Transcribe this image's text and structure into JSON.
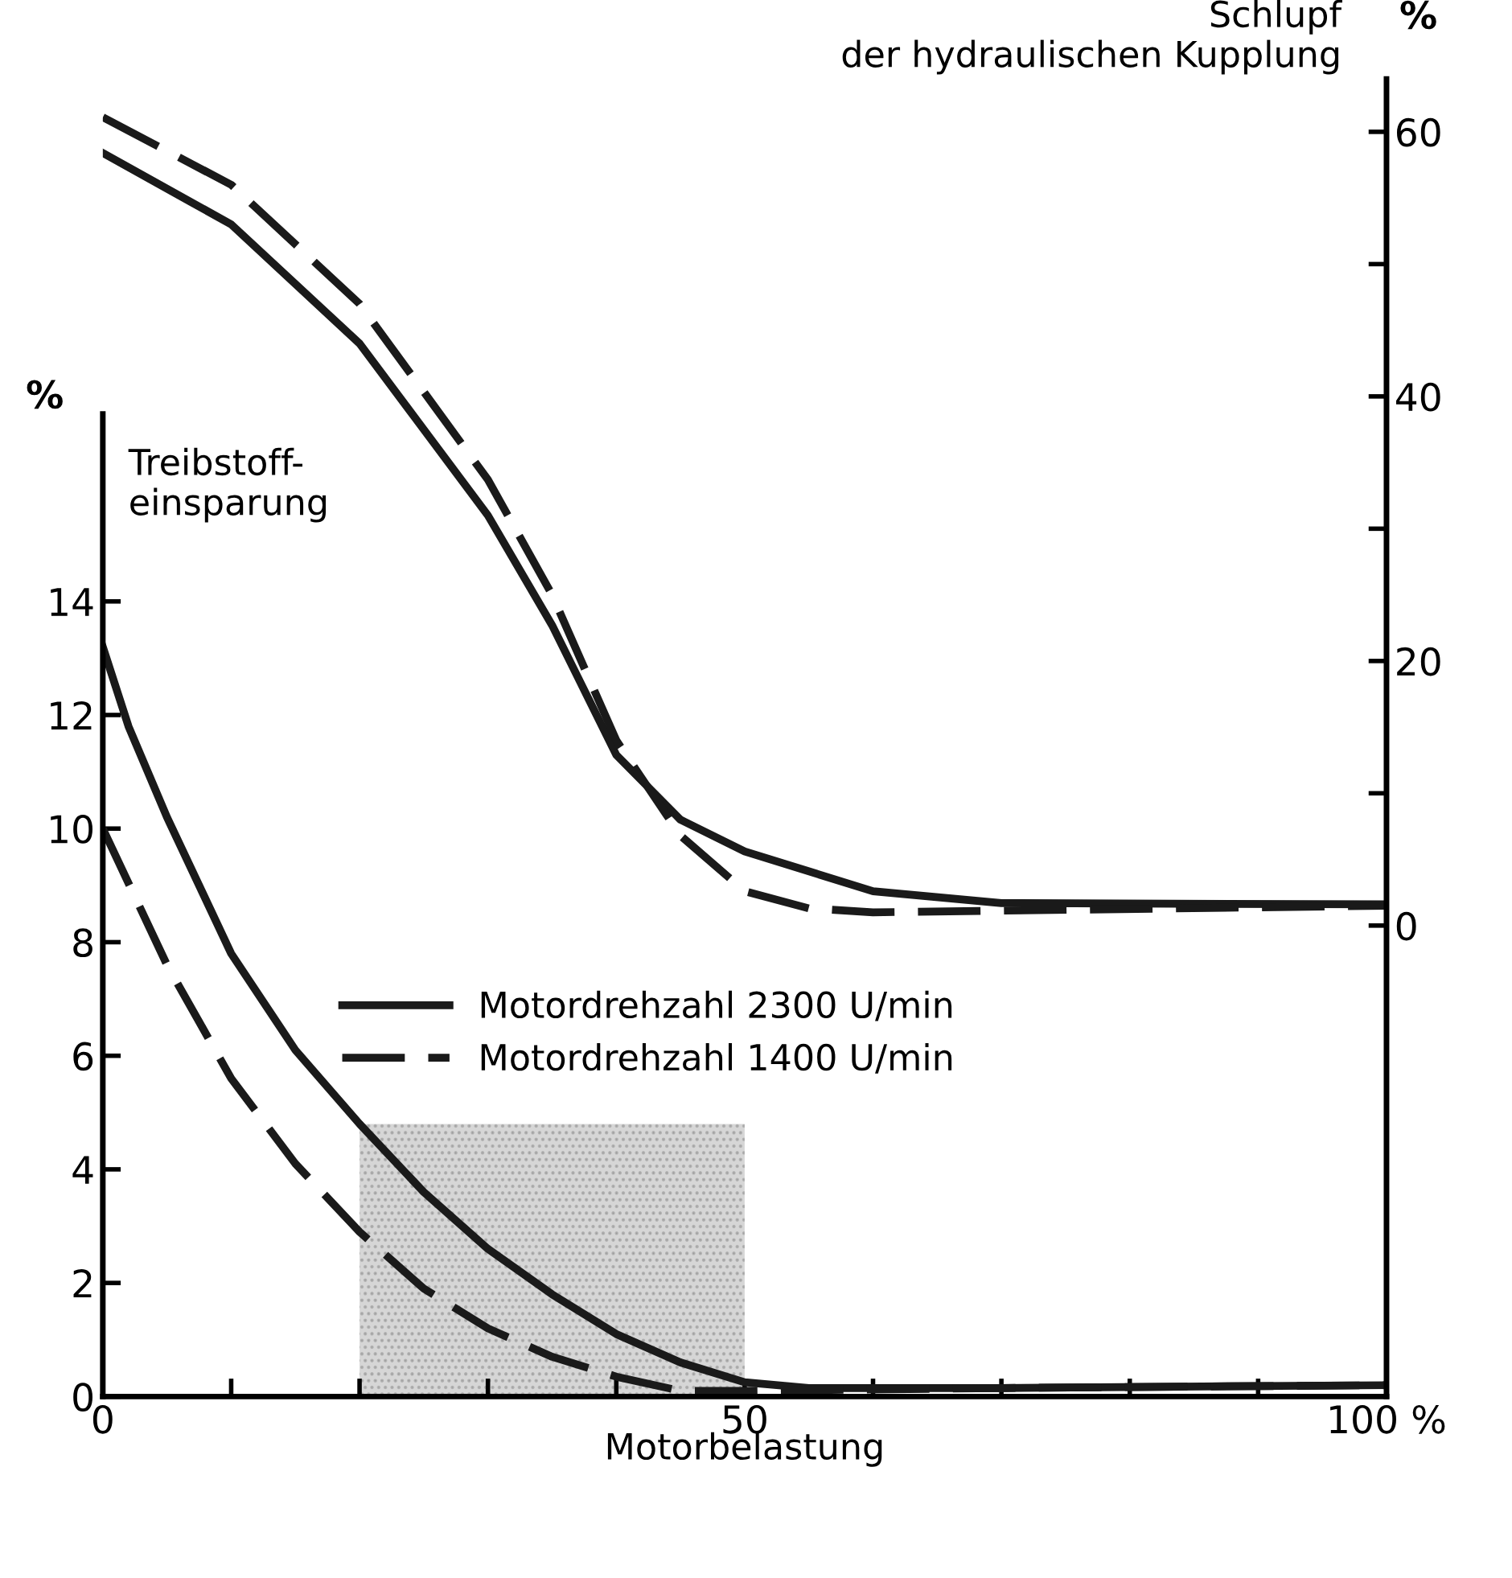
{
  "chart_data": {
    "type": "line",
    "xlabel": "Motorbelastung",
    "ylabel": "Treibstoff-\neinsparung",
    "y2label": "Schlupf\nder hydraulischen Kupplung",
    "annotations": [
      "%",
      "%"
    ],
    "xlim": [
      0,
      100
    ],
    "xticks": [
      0,
      {
        "value": 10,
        "label": null
      },
      {
        "value": 20,
        "label": null
      },
      {
        "value": 30,
        "label": null
      },
      {
        "value": 40,
        "label": null
      },
      50,
      {
        "value": 60,
        "label": null
      },
      {
        "value": 70,
        "label": null
      },
      {
        "value": 80,
        "label": null
      },
      {
        "value": 90,
        "label": null
      },
      {
        "value": 100,
        "label": "100 %"
      }
    ],
    "ylim": [
      0,
      23.2
    ],
    "yticks": [
      0,
      2,
      4,
      6,
      8,
      10,
      12,
      14
    ],
    "y2lim": [
      -35.6,
      64
    ],
    "y2ticks": [
      0,
      {
        "value": 10,
        "label": null
      },
      20,
      {
        "value": 30,
        "label": null
      },
      40,
      {
        "value": 50,
        "label": null
      },
      60
    ],
    "grid": false,
    "legend": "center",
    "marker": "none",
    "bands": [
      {
        "axis": "x",
        "from": 20,
        "to": 50,
        "color": "#bbbbbb"
      }
    ],
    "series": [
      {
        "name": "Motordrehzahl 2300 U/min",
        "color": "#1a1a1a",
        "line_style": "solid",
        "x": [
          0,
          2,
          5,
          10,
          15,
          20,
          25,
          30,
          35,
          40,
          45,
          50,
          55,
          70,
          100
        ],
        "values": [
          13.2,
          11.8,
          10.2,
          7.8,
          6.1,
          4.8,
          3.6,
          2.6,
          1.8,
          1.1,
          0.6,
          0.25,
          0.15,
          0.15,
          0.2
        ]
      },
      {
        "name": "Motordrehzahl 1400 U/min",
        "color": "#1a1a1a",
        "line_style": "dashed",
        "x": [
          0,
          5,
          10,
          15,
          20,
          25,
          30,
          35,
          40,
          45,
          50,
          70,
          100
        ],
        "values": [
          10.0,
          7.6,
          5.6,
          4.1,
          2.9,
          1.9,
          1.2,
          0.7,
          0.35,
          0.1,
          0.1,
          0.15,
          0.2
        ]
      },
      {
        "color": "#1a1a1a",
        "line_style": "solid",
        "axis": "y2",
        "x": [
          0,
          10,
          20,
          30,
          35,
          40,
          45,
          50,
          60,
          70,
          100
        ],
        "values": [
          58.4,
          53,
          44,
          31,
          22.7,
          12.9,
          8,
          5.6,
          2.6,
          1.7,
          1.6
        ]
      },
      {
        "color": "#1a1a1a",
        "line_style": "dashed",
        "axis": "y2",
        "x": [
          0,
          10,
          20,
          30,
          35,
          40,
          45,
          50,
          55,
          60,
          100
        ],
        "values": [
          61.1,
          56,
          47,
          33.7,
          25,
          14,
          6.8,
          2.6,
          1.3,
          1.0,
          1.5
        ]
      }
    ]
  }
}
